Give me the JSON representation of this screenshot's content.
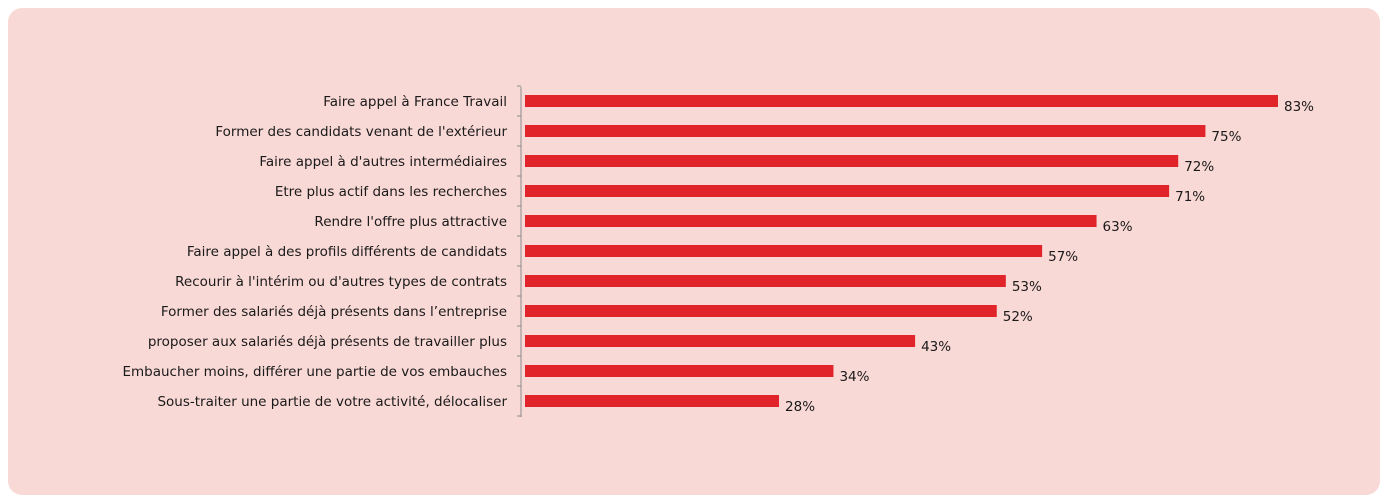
{
  "chart_data": {
    "type": "bar",
    "orientation": "horizontal",
    "categories": [
      "Faire appel à France Travail",
      "Former des candidats venant de l'extérieur",
      "Faire appel à d'autres intermédiaires",
      "Etre plus actif dans les recherches ",
      "Rendre l'offre plus attractive",
      "Faire appel à des profils différents de candidats ",
      "Recourir à l'intérim ou d'autres types de contrats",
      "Former des salariés déjà présents dans l’entreprise ",
      "proposer aux salariés déjà présents de travailler plus ",
      "Embaucher moins, différer une partie de vos embauches",
      "Sous-traiter une partie de votre activité, délocaliser"
    ],
    "values": [
      83,
      75,
      72,
      71,
      63,
      57,
      53,
      52,
      43,
      34,
      28
    ],
    "value_labels": [
      "83%",
      "75%",
      "72%",
      "71%",
      "63%",
      "57%",
      "53%",
      "52%",
      "43%",
      "34%",
      "28%"
    ],
    "unit": "%",
    "xlim": [
      0,
      100
    ],
    "grid": false,
    "legend": "none",
    "colors": {
      "bar": "#e1232a",
      "background": "#f9d9d6",
      "axis": "#8c8c8c",
      "text": "#1a1a1a"
    }
  }
}
